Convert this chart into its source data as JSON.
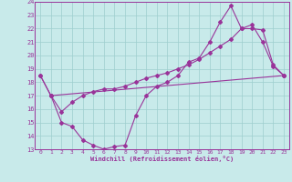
{
  "xlabel": "Windchill (Refroidissement éolien,°C)",
  "xlim": [
    -0.5,
    23.5
  ],
  "ylim": [
    13,
    24
  ],
  "xticks": [
    0,
    1,
    2,
    3,
    4,
    5,
    6,
    7,
    8,
    9,
    10,
    11,
    12,
    13,
    14,
    15,
    16,
    17,
    18,
    19,
    20,
    21,
    22,
    23
  ],
  "yticks": [
    13,
    14,
    15,
    16,
    17,
    18,
    19,
    20,
    21,
    22,
    23,
    24
  ],
  "background_color": "#c8eaea",
  "grid_color": "#9ecece",
  "line_color": "#993399",
  "line1_x": [
    0,
    1,
    2,
    3,
    4,
    5,
    6,
    7,
    8,
    9,
    10,
    11,
    12,
    13,
    14,
    15,
    16,
    17,
    18,
    19,
    20,
    21,
    22,
    23
  ],
  "line1_y": [
    18.5,
    17.0,
    15.0,
    14.7,
    13.7,
    13.3,
    13.0,
    13.2,
    13.3,
    15.5,
    17.0,
    17.7,
    18.0,
    18.5,
    19.5,
    19.8,
    21.0,
    22.5,
    23.7,
    22.0,
    22.3,
    21.0,
    19.2,
    18.5
  ],
  "line2_x": [
    0,
    1,
    23
  ],
  "line2_y": [
    18.5,
    17.0,
    18.5
  ],
  "line3_x": [
    1,
    2,
    3,
    4,
    5,
    6,
    7,
    8,
    9,
    10,
    11,
    12,
    13,
    14,
    15,
    16,
    17,
    18,
    19,
    20,
    21,
    22,
    23
  ],
  "line3_y": [
    17.0,
    15.8,
    16.5,
    17.0,
    17.3,
    17.5,
    17.5,
    17.7,
    18.0,
    18.3,
    18.5,
    18.7,
    19.0,
    19.3,
    19.7,
    20.2,
    20.7,
    21.2,
    22.0,
    22.0,
    21.9,
    19.3,
    18.5
  ]
}
